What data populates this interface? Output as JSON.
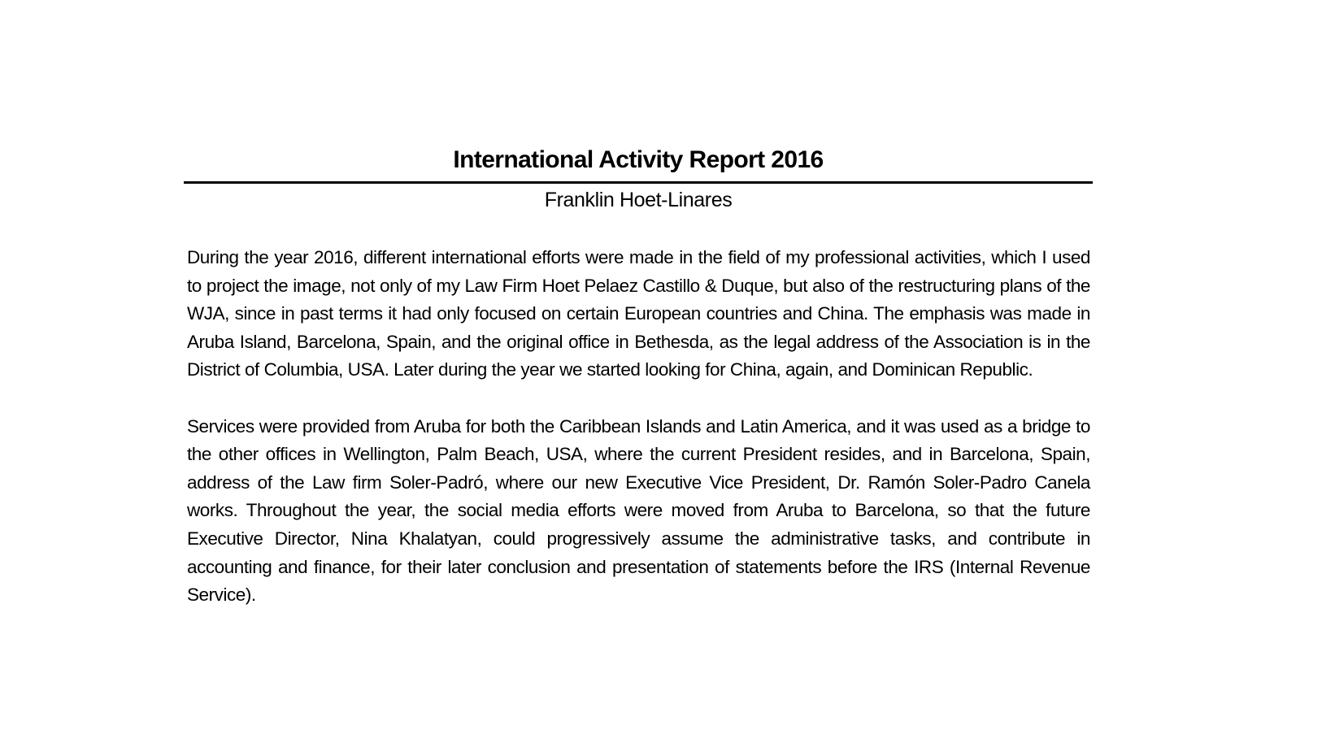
{
  "document": {
    "title": "International Activity Report 2016",
    "author": "Franklin Hoet-Linares",
    "paragraphs": [
      "During the year 2016, different international efforts were made in the field of my professional activities, which I used to project the image, not only of my Law Firm Hoet Pelaez Castillo & Duque, but also of the restructuring plans of the WJA, since in past terms it had only focused on certain European countries and China. The emphasis was made in Aruba Island, Barcelona, Spain, and the original office in Bethesda, as the legal address of the Association is in the District of Columbia, USA. Later during the year we started looking for China, again, and Dominican Republic.",
      "Services were provided from Aruba for both the Caribbean Islands and Latin America, and it was used as a bridge to the other offices in Wellington, Palm Beach, USA, where the current President resides, and in Barcelona, Spain, address of the Law firm Soler-Padró, where our new Executive Vice President, Dr. Ramón Soler-Padro Canela works. Throughout the year, the social media efforts were moved from Aruba to Barcelona, so that the future Executive Director, Nina Khalatyan, could progressively assume the administrative tasks, and contribute in accounting and finance, for their later conclusion and presentation of statements before the IRS (Internal Revenue Service)."
    ]
  }
}
